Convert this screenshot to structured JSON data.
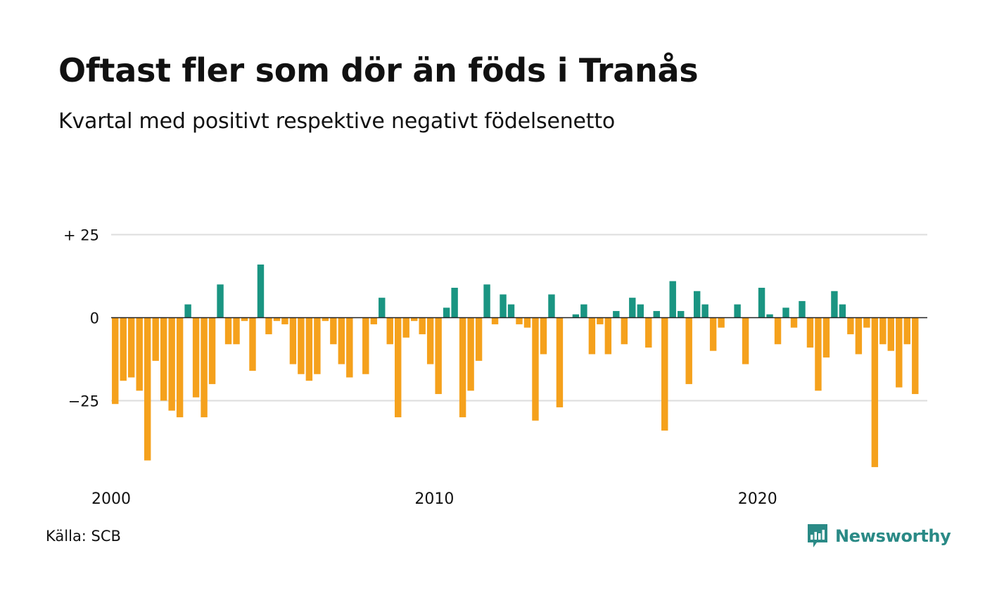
{
  "title": "Oftast fler som dör än föds i Tranås",
  "subtitle": "Kvartal med positivt respektive negativt födelsenetto",
  "source": "Källa: SCB",
  "logo": {
    "text": "Newsworthy",
    "icon": "newsworthy-bars-icon"
  },
  "colors": {
    "positive": "#1a9582",
    "negative": "#f5a11c",
    "grid": "#dddddd",
    "zero_line": "#222222"
  },
  "chart_data": {
    "type": "bar",
    "title": "Oftast fler som dör än föds i Tranås",
    "subtitle": "Kvartal med positivt respektive negativt födelsenetto",
    "xlabel": "",
    "ylabel": "",
    "ylim": [
      -48,
      28
    ],
    "yticks": [
      {
        "value": 25,
        "label": "+ 25"
      },
      {
        "value": 0,
        "label": "0"
      },
      {
        "value": -25,
        "label": "−25"
      }
    ],
    "xticks": [
      {
        "index": 0,
        "label": "2000"
      },
      {
        "index": 40,
        "label": "2010"
      },
      {
        "index": 80,
        "label": "2020"
      }
    ],
    "grid": true,
    "legend": "none",
    "start_period": "2000 Q1",
    "categories": [
      "2000 Q1",
      "2000 Q2",
      "2000 Q3",
      "2000 Q4",
      "2001 Q1",
      "2001 Q2",
      "2001 Q3",
      "2001 Q4",
      "2002 Q1",
      "2002 Q2",
      "2002 Q3",
      "2002 Q4",
      "2003 Q1",
      "2003 Q2",
      "2003 Q3",
      "2003 Q4",
      "2004 Q1",
      "2004 Q2",
      "2004 Q3",
      "2004 Q4",
      "2005 Q1",
      "2005 Q2",
      "2005 Q3",
      "2005 Q4",
      "2006 Q1",
      "2006 Q2",
      "2006 Q3",
      "2006 Q4",
      "2007 Q1",
      "2007 Q2",
      "2007 Q3",
      "2007 Q4",
      "2008 Q1",
      "2008 Q2",
      "2008 Q3",
      "2008 Q4",
      "2009 Q1",
      "2009 Q2",
      "2009 Q3",
      "2009 Q4",
      "2010 Q1",
      "2010 Q2",
      "2010 Q3",
      "2010 Q4",
      "2011 Q1",
      "2011 Q2",
      "2011 Q3",
      "2011 Q4",
      "2012 Q1",
      "2012 Q2",
      "2012 Q3",
      "2012 Q4",
      "2013 Q1",
      "2013 Q2",
      "2013 Q3",
      "2013 Q4",
      "2014 Q1",
      "2014 Q2",
      "2014 Q3",
      "2014 Q4",
      "2015 Q1",
      "2015 Q2",
      "2015 Q3",
      "2015 Q4",
      "2016 Q1",
      "2016 Q2",
      "2016 Q3",
      "2016 Q4",
      "2017 Q1",
      "2017 Q2",
      "2017 Q3",
      "2017 Q4",
      "2018 Q1",
      "2018 Q2",
      "2018 Q3",
      "2018 Q4",
      "2019 Q1",
      "2019 Q2",
      "2019 Q3",
      "2019 Q4",
      "2020 Q1",
      "2020 Q2",
      "2020 Q3",
      "2020 Q4",
      "2021 Q1",
      "2021 Q2",
      "2021 Q3",
      "2021 Q4",
      "2022 Q1",
      "2022 Q2",
      "2022 Q3",
      "2022 Q4",
      "2023 Q1",
      "2023 Q2",
      "2023 Q3",
      "2023 Q4",
      "2024 Q1",
      "2024 Q2",
      "2024 Q3",
      "2024 Q4",
      "2025 Q1"
    ],
    "values": [
      -26,
      -19,
      -18,
      -22,
      -43,
      -13,
      -25,
      -28,
      -30,
      4,
      -24,
      -30,
      -20,
      10,
      -8,
      -8,
      -1,
      -16,
      16,
      -5,
      -1,
      -2,
      -14,
      -17,
      -19,
      -17,
      -1,
      -8,
      -14,
      -18,
      0,
      -17,
      -2,
      6,
      -8,
      -30,
      -6,
      -1,
      -5,
      -14,
      -23,
      3,
      9,
      -30,
      -22,
      -13,
      10,
      -2,
      7,
      4,
      -2,
      -3,
      -31,
      -11,
      7,
      -27,
      0,
      1,
      4,
      -11,
      -2,
      -11,
      2,
      -8,
      6,
      4,
      -9,
      2,
      -34,
      11,
      2,
      -20,
      8,
      4,
      -10,
      -3,
      0,
      4,
      -14,
      0,
      9,
      1,
      -8,
      3,
      -3,
      5,
      -9,
      -22,
      -12,
      8,
      4,
      -5,
      -11,
      -3,
      -45,
      -8,
      -10,
      -21,
      -8,
      -23,
      0
    ]
  }
}
